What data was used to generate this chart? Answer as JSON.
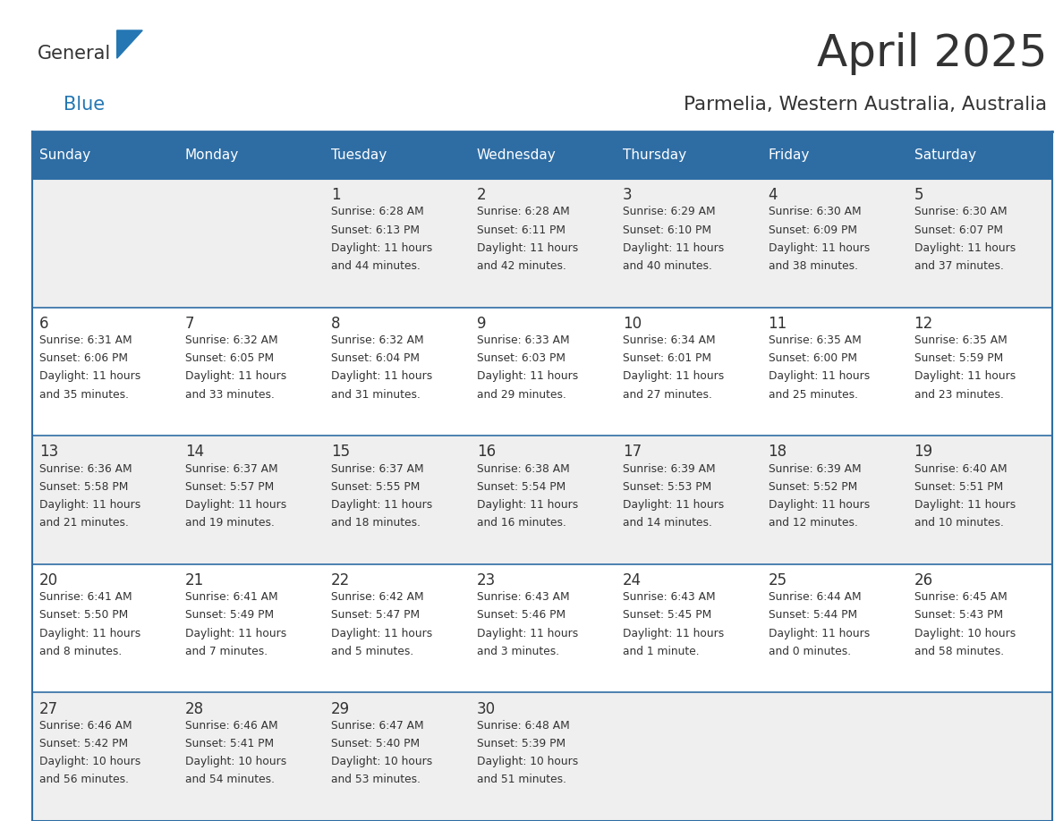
{
  "title": "April 2025",
  "subtitle": "Parmelia, Western Australia, Australia",
  "days_of_week": [
    "Sunday",
    "Monday",
    "Tuesday",
    "Wednesday",
    "Thursday",
    "Friday",
    "Saturday"
  ],
  "header_bg": "#2E6DA4",
  "header_text": "#FFFFFF",
  "cell_bg_light": "#EFEFEF",
  "cell_bg_white": "#FFFFFF",
  "cell_text": "#333333",
  "day_num_color": "#333333",
  "grid_line_color": "#2E6DA4",
  "title_color": "#333333",
  "subtitle_color": "#333333",
  "logo_general_color": "#333333",
  "logo_blue_color": "#2477B3",
  "calendar_data": [
    [
      null,
      null,
      {
        "day": 1,
        "sunrise": "6:28 AM",
        "sunset": "6:13 PM",
        "daylight": "11 hours and 44 minutes."
      },
      {
        "day": 2,
        "sunrise": "6:28 AM",
        "sunset": "6:11 PM",
        "daylight": "11 hours and 42 minutes."
      },
      {
        "day": 3,
        "sunrise": "6:29 AM",
        "sunset": "6:10 PM",
        "daylight": "11 hours and 40 minutes."
      },
      {
        "day": 4,
        "sunrise": "6:30 AM",
        "sunset": "6:09 PM",
        "daylight": "11 hours and 38 minutes."
      },
      {
        "day": 5,
        "sunrise": "6:30 AM",
        "sunset": "6:07 PM",
        "daylight": "11 hours and 37 minutes."
      }
    ],
    [
      {
        "day": 6,
        "sunrise": "6:31 AM",
        "sunset": "6:06 PM",
        "daylight": "11 hours and 35 minutes."
      },
      {
        "day": 7,
        "sunrise": "6:32 AM",
        "sunset": "6:05 PM",
        "daylight": "11 hours and 33 minutes."
      },
      {
        "day": 8,
        "sunrise": "6:32 AM",
        "sunset": "6:04 PM",
        "daylight": "11 hours and 31 minutes."
      },
      {
        "day": 9,
        "sunrise": "6:33 AM",
        "sunset": "6:03 PM",
        "daylight": "11 hours and 29 minutes."
      },
      {
        "day": 10,
        "sunrise": "6:34 AM",
        "sunset": "6:01 PM",
        "daylight": "11 hours and 27 minutes."
      },
      {
        "day": 11,
        "sunrise": "6:35 AM",
        "sunset": "6:00 PM",
        "daylight": "11 hours and 25 minutes."
      },
      {
        "day": 12,
        "sunrise": "6:35 AM",
        "sunset": "5:59 PM",
        "daylight": "11 hours and 23 minutes."
      }
    ],
    [
      {
        "day": 13,
        "sunrise": "6:36 AM",
        "sunset": "5:58 PM",
        "daylight": "11 hours and 21 minutes."
      },
      {
        "day": 14,
        "sunrise": "6:37 AM",
        "sunset": "5:57 PM",
        "daylight": "11 hours and 19 minutes."
      },
      {
        "day": 15,
        "sunrise": "6:37 AM",
        "sunset": "5:55 PM",
        "daylight": "11 hours and 18 minutes."
      },
      {
        "day": 16,
        "sunrise": "6:38 AM",
        "sunset": "5:54 PM",
        "daylight": "11 hours and 16 minutes."
      },
      {
        "day": 17,
        "sunrise": "6:39 AM",
        "sunset": "5:53 PM",
        "daylight": "11 hours and 14 minutes."
      },
      {
        "day": 18,
        "sunrise": "6:39 AM",
        "sunset": "5:52 PM",
        "daylight": "11 hours and 12 minutes."
      },
      {
        "day": 19,
        "sunrise": "6:40 AM",
        "sunset": "5:51 PM",
        "daylight": "11 hours and 10 minutes."
      }
    ],
    [
      {
        "day": 20,
        "sunrise": "6:41 AM",
        "sunset": "5:50 PM",
        "daylight": "11 hours and 8 minutes."
      },
      {
        "day": 21,
        "sunrise": "6:41 AM",
        "sunset": "5:49 PM",
        "daylight": "11 hours and 7 minutes."
      },
      {
        "day": 22,
        "sunrise": "6:42 AM",
        "sunset": "5:47 PM",
        "daylight": "11 hours and 5 minutes."
      },
      {
        "day": 23,
        "sunrise": "6:43 AM",
        "sunset": "5:46 PM",
        "daylight": "11 hours and 3 minutes."
      },
      {
        "day": 24,
        "sunrise": "6:43 AM",
        "sunset": "5:45 PM",
        "daylight": "11 hours and 1 minute."
      },
      {
        "day": 25,
        "sunrise": "6:44 AM",
        "sunset": "5:44 PM",
        "daylight": "11 hours and 0 minutes."
      },
      {
        "day": 26,
        "sunrise": "6:45 AM",
        "sunset": "5:43 PM",
        "daylight": "10 hours and 58 minutes."
      }
    ],
    [
      {
        "day": 27,
        "sunrise": "6:46 AM",
        "sunset": "5:42 PM",
        "daylight": "10 hours and 56 minutes."
      },
      {
        "day": 28,
        "sunrise": "6:46 AM",
        "sunset": "5:41 PM",
        "daylight": "10 hours and 54 minutes."
      },
      {
        "day": 29,
        "sunrise": "6:47 AM",
        "sunset": "5:40 PM",
        "daylight": "10 hours and 53 minutes."
      },
      {
        "day": 30,
        "sunrise": "6:48 AM",
        "sunset": "5:39 PM",
        "daylight": "10 hours and 51 minutes."
      },
      null,
      null,
      null
    ]
  ]
}
